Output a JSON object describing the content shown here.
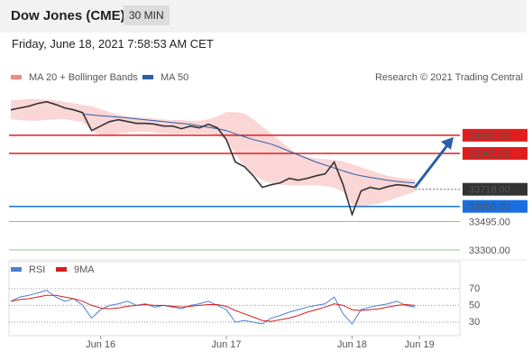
{
  "header": {
    "title": "Dow Jones (CME)",
    "interval": "30 MIN",
    "timestamp": "Friday, June 18, 2021 7:58:53 AM CET"
  },
  "chart_data": [
    {
      "type": "line",
      "source": "Research © 2021 Trading Central",
      "x": [
        0,
        1,
        2,
        3,
        4,
        5,
        6,
        7,
        8,
        9,
        10,
        11,
        12,
        13,
        14,
        15,
        16,
        17,
        18,
        19,
        20,
        21,
        22,
        23,
        24,
        25,
        26,
        27,
        28,
        29,
        30,
        31,
        32,
        33,
        34,
        35,
        36,
        37,
        38,
        39,
        40,
        41,
        42,
        43,
        44,
        45
      ],
      "xlim": [
        0,
        50
      ],
      "ylim": [
        33250,
        34400
      ],
      "color": "#333333",
      "values": [
        34265,
        34278,
        34290,
        34309,
        34321,
        34302,
        34278,
        34265,
        34246,
        34122,
        34153,
        34184,
        34197,
        34184,
        34172,
        34172,
        34166,
        34153,
        34153,
        34135,
        34153,
        34141,
        34166,
        34141,
        34060,
        33905,
        33874,
        33811,
        33731,
        33749,
        33762,
        33793,
        33780,
        33793,
        33811,
        33824,
        33905,
        33749,
        33544,
        33706,
        33731,
        33718,
        33737,
        33749,
        33743,
        33731
      ],
      "series": [
        {
          "name": "MA 20 + Bollinger Bands",
          "color": "#f08a8a",
          "upper": [
            34330,
            34335,
            34340,
            34340,
            34335,
            34330,
            34320,
            34310,
            34300,
            34290,
            34270,
            34250,
            34230,
            34220,
            34215,
            34210,
            34205,
            34200,
            34195,
            34195,
            34190,
            34190,
            34200,
            34220,
            34250,
            34250,
            34240,
            34200,
            34150,
            34100,
            34050,
            34000,
            33960,
            33940,
            33930,
            33925,
            33920,
            33910,
            33890,
            33870,
            33850,
            33830,
            33810,
            33800,
            33790,
            33785
          ],
          "lower": [
            34200,
            34195,
            34190,
            34190,
            34195,
            34200,
            34200,
            34190,
            34180,
            34120,
            34090,
            34090,
            34100,
            34110,
            34115,
            34115,
            34110,
            34105,
            34100,
            34100,
            34100,
            34100,
            34100,
            34090,
            34060,
            33960,
            33880,
            33820,
            33780,
            33760,
            33750,
            33745,
            33745,
            33745,
            33745,
            33740,
            33730,
            33700,
            33610,
            33600,
            33610,
            33620,
            33640,
            33660,
            33680,
            33700
          ]
        },
        {
          "name": "MA 50",
          "color": "#2c5ea8",
          "values": [
            null,
            null,
            null,
            null,
            null,
            null,
            null,
            null,
            34235,
            34230,
            34225,
            34220,
            34215,
            34210,
            34203,
            34197,
            34190,
            34184,
            34178,
            34172,
            34165,
            34155,
            34145,
            34135,
            34122,
            34100,
            34080,
            34060,
            34045,
            34029,
            34005,
            33980,
            33955,
            33930,
            33905,
            33885,
            33865,
            33845,
            33825,
            33811,
            33800,
            33790,
            33780,
            33772,
            33766,
            33762
          ]
        }
      ],
      "levels": [
        {
          "value": 34090,
          "label": "34090.00",
          "color": "#e01e1e",
          "style": "box"
        },
        {
          "value": 33965,
          "label": "33965.00",
          "color": "#e01e1e",
          "style": "box"
        },
        {
          "value": 33718,
          "label": "33718.00",
          "color": "#333333",
          "style": "current"
        },
        {
          "value": 33600,
          "label": "33600.00",
          "color": "#1a6fe0",
          "style": "box"
        },
        {
          "value": 33495,
          "label": "33495.00",
          "color": "#2e8b2e",
          "style": "text"
        },
        {
          "value": 33300,
          "label": "33300.00",
          "color": "#2e8b2e",
          "style": "text"
        }
      ]
    },
    {
      "type": "line",
      "x": [
        0,
        1,
        2,
        3,
        4,
        5,
        6,
        7,
        8,
        9,
        10,
        11,
        12,
        13,
        14,
        15,
        16,
        17,
        18,
        19,
        20,
        21,
        22,
        23,
        24,
        25,
        26,
        27,
        28,
        29,
        30,
        31,
        32,
        33,
        34,
        35,
        36,
        37,
        38,
        39,
        40,
        41,
        42,
        43,
        44,
        45
      ],
      "xlim": [
        0,
        50
      ],
      "xticks": [
        {
          "value": 10,
          "label": "Jun 16"
        },
        {
          "value": 24,
          "label": "Jun 17"
        },
        {
          "value": 38,
          "label": "Jun 18"
        },
        {
          "value": 45.5,
          "label": "Jun 19"
        }
      ],
      "ylim": [
        16,
        86
      ],
      "yticks": [
        70,
        50,
        30
      ],
      "series": [
        {
          "name": "RSI",
          "color": "#4a7fd4",
          "values": [
            55,
            60,
            62,
            65,
            68,
            60,
            55,
            58,
            50,
            35,
            45,
            50,
            52,
            55,
            50,
            52,
            48,
            50,
            48,
            46,
            50,
            52,
            55,
            50,
            45,
            30,
            32,
            30,
            28,
            35,
            38,
            42,
            45,
            48,
            50,
            52,
            60,
            40,
            28,
            45,
            48,
            50,
            52,
            55,
            50,
            48
          ]
        },
        {
          "name": "9MA",
          "color": "#d42020",
          "values": [
            55,
            57,
            58,
            60,
            62,
            62,
            60,
            58,
            55,
            50,
            47,
            46,
            47,
            49,
            50,
            51,
            50,
            50,
            49,
            48,
            49,
            50,
            51,
            51,
            49,
            44,
            40,
            36,
            32,
            31,
            33,
            35,
            38,
            42,
            45,
            48,
            52,
            50,
            45,
            44,
            45,
            46,
            48,
            50,
            51,
            50
          ]
        }
      ]
    }
  ]
}
